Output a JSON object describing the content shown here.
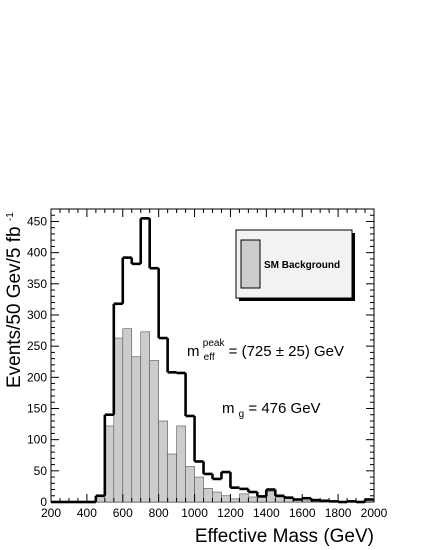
{
  "chart_data": {
    "type": "bar",
    "title": "",
    "xlabel": "Effective Mass (GeV)",
    "ylabel": "Events/50 Gev/5 fb",
    "ylabel_sup": "-1",
    "xlim": [
      200,
      2000
    ],
    "ylim": [
      0,
      470
    ],
    "bin_width": 50,
    "x_ticks": [
      200,
      400,
      600,
      800,
      1000,
      1200,
      1400,
      1600,
      1800,
      2000
    ],
    "y_ticks": [
      0,
      50,
      100,
      150,
      200,
      250,
      300,
      350,
      400,
      450
    ],
    "bin_edges": [
      200,
      250,
      300,
      350,
      400,
      450,
      500,
      550,
      600,
      650,
      700,
      750,
      800,
      850,
      900,
      950,
      1000,
      1050,
      1100,
      1150,
      1200,
      1250,
      1300,
      1350,
      1400,
      1450,
      1500,
      1550,
      1600,
      1650,
      1700,
      1750,
      1800,
      1850,
      1900,
      1950,
      2000
    ],
    "series": [
      {
        "name": "SM Background",
        "style": "filled",
        "fill_color": "#cccccc",
        "values": [
          0,
          0,
          0,
          0,
          0,
          10,
          122,
          263,
          278,
          233,
          273,
          227,
          130,
          77,
          122,
          57,
          40,
          22,
          16,
          10,
          5,
          13,
          8,
          9,
          17,
          8,
          6,
          4,
          2,
          1,
          1,
          0,
          0,
          0,
          0,
          0
        ]
      },
      {
        "name": "",
        "style": "outline",
        "line_color": "#000000",
        "values": [
          0,
          0,
          0,
          0,
          0,
          10,
          140,
          318,
          392,
          382,
          455,
          375,
          263,
          208,
          207,
          138,
          65,
          45,
          37,
          48,
          23,
          21,
          16,
          9,
          20,
          10,
          7,
          4,
          6,
          3,
          2,
          1,
          0,
          1,
          0,
          4
        ]
      }
    ],
    "legend": {
      "position": "top-right",
      "entries": [
        {
          "label": "SM Background",
          "fill_color": "#cccccc"
        }
      ]
    },
    "annotations": {
      "peak_label": {
        "m": "m",
        "sub": "eff",
        "sup": "peak",
        "rest": " = (725 ± 25) GeV"
      },
      "mass_label": {
        "m": "m",
        "sub": "g",
        "rest": " = 476 GeV"
      }
    }
  }
}
